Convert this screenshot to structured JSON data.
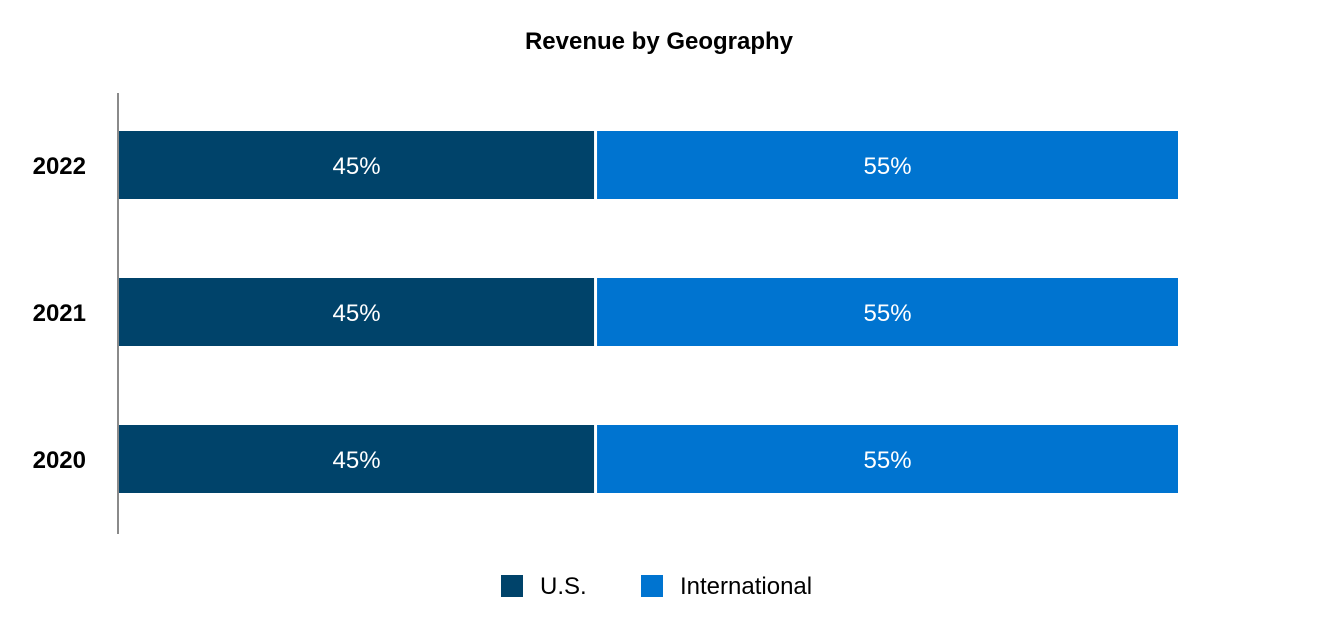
{
  "chart_data": {
    "type": "bar",
    "orientation": "horizontal",
    "stacked": true,
    "title": "Revenue by Geography",
    "categories": [
      "2022",
      "2021",
      "2020"
    ],
    "series": [
      {
        "name": "U.S.",
        "values": [
          45,
          45,
          45
        ],
        "labels": [
          "45%",
          "45%",
          "45%"
        ],
        "color": "#00436a"
      },
      {
        "name": "International",
        "values": [
          55,
          55,
          55
        ],
        "labels": [
          "55%",
          "55%",
          "55%"
        ],
        "color": "#0074d0"
      }
    ],
    "xlim": [
      0,
      100
    ],
    "grid": false,
    "legend": "bottom-center"
  }
}
